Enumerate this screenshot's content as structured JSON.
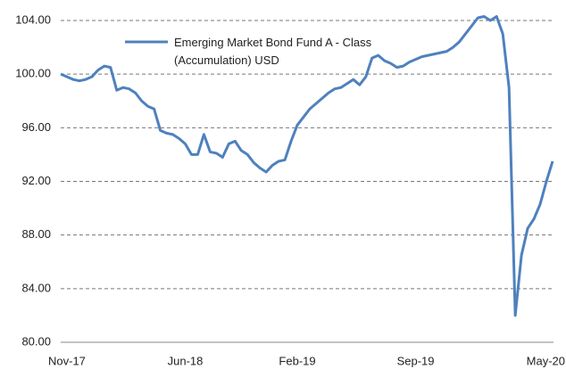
{
  "chart_data": {
    "type": "line",
    "categories": [
      null,
      "Nov-17",
      null,
      null,
      null,
      null,
      null,
      null,
      null,
      null,
      null,
      null,
      null,
      null,
      null,
      null,
      null,
      null,
      null,
      null,
      "Jun-18",
      null,
      null,
      null,
      null,
      null,
      null,
      null,
      null,
      null,
      null,
      null,
      null,
      null,
      null,
      null,
      null,
      null,
      "Feb-19",
      null,
      null,
      null,
      null,
      null,
      null,
      null,
      null,
      null,
      null,
      null,
      null,
      null,
      null,
      null,
      null,
      null,
      null,
      "Sep-19",
      null,
      null,
      null,
      null,
      null,
      null,
      null,
      null,
      null,
      null,
      null,
      null,
      null,
      null,
      null,
      null,
      null,
      null,
      null,
      null,
      null,
      "May-20"
    ],
    "series": [
      {
        "name": "Emerging Market Bond Fund A - Class (Accumulation) USD",
        "color": "#4f81bd",
        "values": [
          100.0,
          99.8,
          99.6,
          99.5,
          99.6,
          99.8,
          100.3,
          100.6,
          100.5,
          98.8,
          99.0,
          98.9,
          98.6,
          98.0,
          97.6,
          97.4,
          95.8,
          95.6,
          95.5,
          95.2,
          94.8,
          94.0,
          94.0,
          95.5,
          94.2,
          94.1,
          93.8,
          94.8,
          95.0,
          94.3,
          94.0,
          93.4,
          93.0,
          92.7,
          93.2,
          93.5,
          93.6,
          95.0,
          96.2,
          96.8,
          97.4,
          97.8,
          98.2,
          98.6,
          98.9,
          99.0,
          99.3,
          99.6,
          99.2,
          99.8,
          101.2,
          101.4,
          101.0,
          100.8,
          100.5,
          100.6,
          100.9,
          101.1,
          101.3,
          101.4,
          101.5,
          101.6,
          101.7,
          102.0,
          102.4,
          103.0,
          103.6,
          104.2,
          104.3,
          104.0,
          104.3,
          103.0,
          99.0,
          82.0,
          86.5,
          88.5,
          89.2,
          90.3,
          92.0,
          93.5
        ]
      }
    ],
    "ylim": [
      80,
      104
    ],
    "yticks": [
      {
        "value": 80,
        "label": "80.00"
      },
      {
        "value": 84,
        "label": "84.00"
      },
      {
        "value": 88,
        "label": "88.00"
      },
      {
        "value": 92,
        "label": "92.00"
      },
      {
        "value": 96,
        "label": "96.00"
      },
      {
        "value": 100,
        "label": "100.00"
      },
      {
        "value": 104,
        "label": "104.00"
      }
    ],
    "grid": true
  }
}
